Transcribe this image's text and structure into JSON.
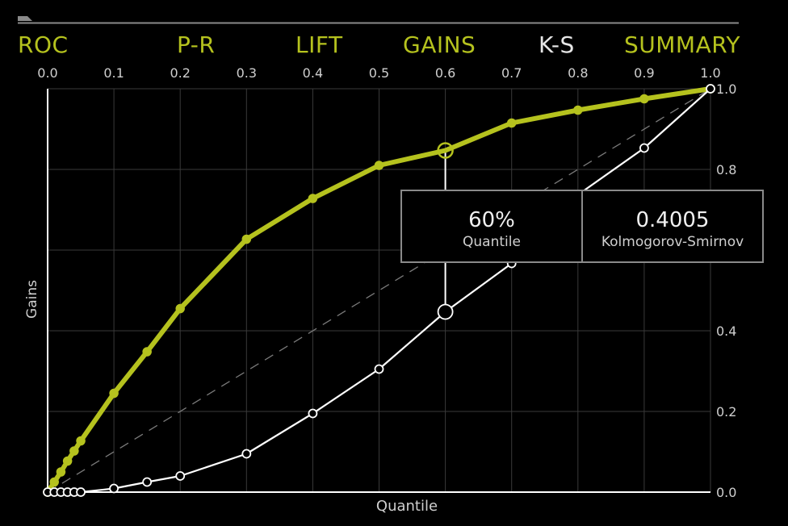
{
  "tabs": [
    {
      "label": "ROC",
      "active": false
    },
    {
      "label": "P-R",
      "active": false
    },
    {
      "label": "LIFT",
      "active": false
    },
    {
      "label": "GAINS",
      "active": false
    },
    {
      "label": "K-S",
      "active": true
    },
    {
      "label": "SUMMARY",
      "active": false
    }
  ],
  "colors": {
    "accent": "#b5c21e",
    "white_curve": "#ffffff",
    "grid": "#3a3a3a",
    "background": "#000000"
  },
  "tooltip": {
    "quantile_value": "60%",
    "quantile_label": "Quantile",
    "ks_value": "0.4005",
    "ks_label": "Kolmogorov-Smirnov"
  },
  "chart_data": {
    "type": "line",
    "xlabel": "Quantile",
    "ylabel": "Gains",
    "xlim": [
      0,
      1
    ],
    "ylim": [
      0,
      1
    ],
    "grid": true,
    "x_ticks": [
      "0.0",
      "0.1",
      "0.2",
      "0.3",
      "0.4",
      "0.5",
      "0.6",
      "0.7",
      "0.8",
      "0.9",
      "1.0"
    ],
    "y_ticks": [
      "0.0",
      "0.2",
      "0.4",
      "0.6",
      "0.8",
      "1.0"
    ],
    "series": [
      {
        "color": "#b5c21e",
        "x": [
          0,
          0.01,
          0.02,
          0.03,
          0.04,
          0.05,
          0.1,
          0.15,
          0.2,
          0.3,
          0.4,
          0.5,
          0.6,
          0.7,
          0.8,
          0.9,
          1.0
        ],
        "y": [
          0,
          0.025,
          0.05,
          0.077,
          0.102,
          0.127,
          0.245,
          0.348,
          0.455,
          0.627,
          0.728,
          0.81,
          0.847,
          0.915,
          0.947,
          0.975,
          1.0
        ]
      },
      {
        "color": "#ffffff",
        "x": [
          0,
          0.01,
          0.02,
          0.03,
          0.04,
          0.05,
          0.1,
          0.15,
          0.2,
          0.3,
          0.4,
          0.5,
          0.6,
          0.7,
          0.8,
          0.9,
          1.0
        ],
        "y": [
          0,
          0,
          0,
          0,
          0,
          0,
          0.009,
          0.025,
          0.04,
          0.095,
          0.195,
          0.305,
          0.447,
          0.567,
          0.737,
          0.853,
          1.0
        ]
      }
    ],
    "reference_line": {
      "x": [
        0,
        1
      ],
      "y": [
        0,
        1
      ],
      "style": "dashed"
    },
    "highlight": {
      "x": 0.6,
      "y_top": 0.847,
      "y_bottom": 0.447
    }
  }
}
